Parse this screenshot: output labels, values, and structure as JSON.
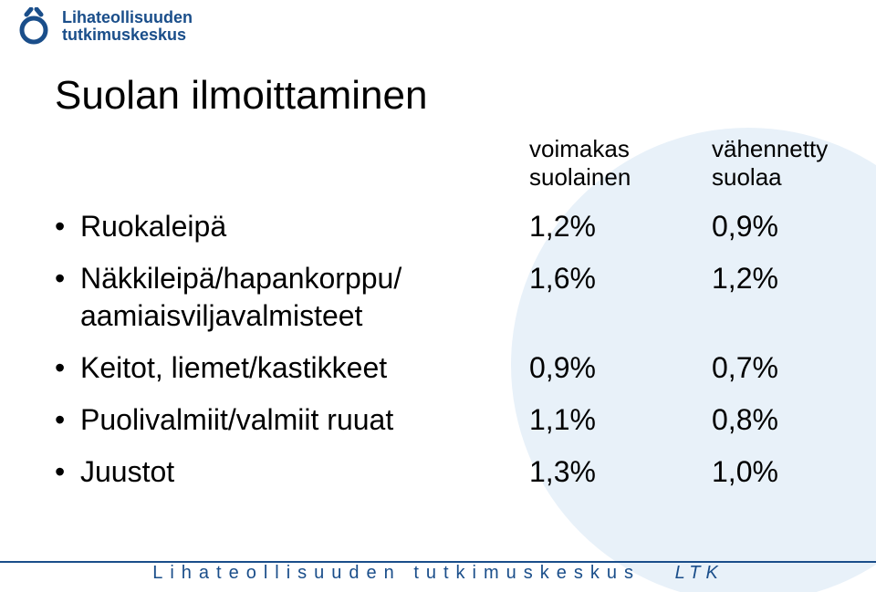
{
  "colors": {
    "brand": "#1a4e8a",
    "bgCircle": "#e8f1f9",
    "text": "#000000",
    "footerLine": "#1a4e8a"
  },
  "logo": {
    "line1": "Lihateollisuuden",
    "line2": "tutkimuskeskus"
  },
  "slide": {
    "title": "Suolan ilmoittaminen",
    "headers": {
      "colA_line1": "voimakas",
      "colA_line2": "suolainen",
      "colB_line1": "vähennetty",
      "colB_line2": "suolaa"
    },
    "rows": [
      {
        "label": "Ruokaleipä",
        "a": "1,2%",
        "b": "0,9%",
        "sublabel": null
      },
      {
        "label": "Näkkileipä/hapankorppu/",
        "a": "1,6%",
        "b": "1,2%",
        "sublabel": "aamiaisviljavalmisteet"
      },
      {
        "label": "Keitot, liemet/kastikkeet",
        "a": "0,9%",
        "b": "0,7%",
        "sublabel": null
      },
      {
        "label": "Puolivalmiit/valmiit ruuat",
        "a": "1,1%",
        "b": "0,8%",
        "sublabel": null
      },
      {
        "label": "Juustot",
        "a": "1,3%",
        "b": "1,0%",
        "sublabel": null
      }
    ]
  },
  "footer": {
    "main": "Lihateollisuuden tutkimuskeskus",
    "suffix": "LTK"
  }
}
